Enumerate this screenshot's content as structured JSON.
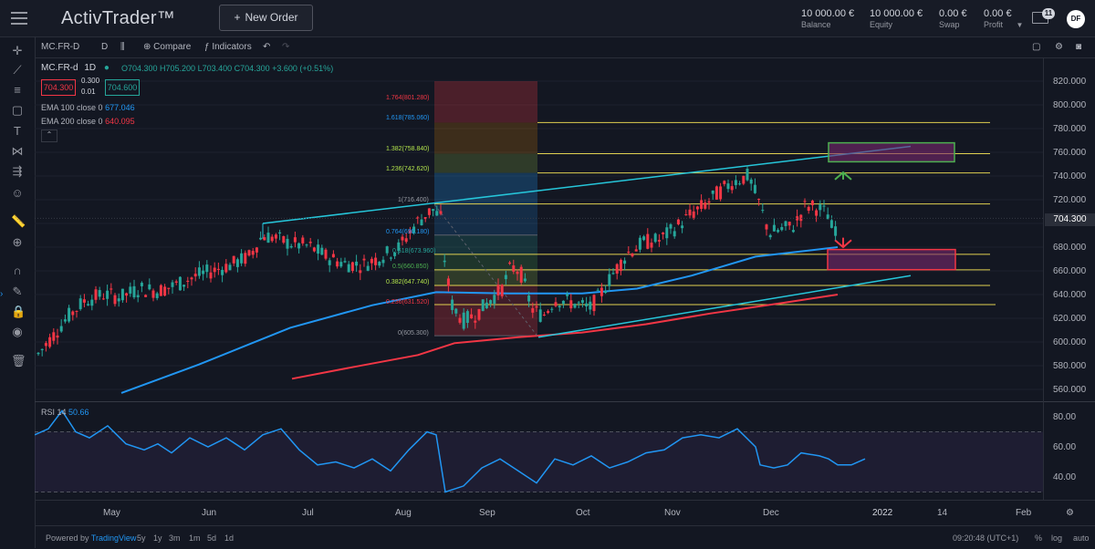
{
  "app": {
    "logo": "ActivTrader™",
    "new_order": "New Order",
    "new_order_icon": "plus-icon"
  },
  "account": [
    {
      "value": "10 000.00 €",
      "label": "Balance"
    },
    {
      "value": "10 000.00 €",
      "label": "Equity"
    },
    {
      "value": "0.00 €",
      "label": "Swap"
    },
    {
      "value": "0.00 €",
      "label": "Profit"
    }
  ],
  "notifications": "11",
  "avatar": "DF",
  "toolbar": {
    "symbol": "MC.FR-D",
    "interval": "D",
    "compare": "Compare",
    "indicators": "Indicators"
  },
  "legend": {
    "symbol": "MC.FR-d",
    "interval": "1D",
    "ohlc": "O704.300 H705.200 L703.400 C704.300 +3.600 (+0.51%)",
    "sell": "704.300",
    "spread_top": "0.300",
    "spread_bottom": "0.01",
    "buy": "704.600",
    "ema100": {
      "label": "EMA 100 close 0",
      "value": "677.046",
      "color": "#2196f3"
    },
    "ema200": {
      "label": "EMA 200 close 0",
      "value": "640.095",
      "color": "#f23645"
    }
  },
  "fib": [
    {
      "label": "1.764(801.280)",
      "color": "#f23645"
    },
    {
      "label": "1.618(785.060)",
      "color": "#2196f3"
    },
    {
      "label": "1.382(758.840)",
      "color": "#b2e34b"
    },
    {
      "label": "1.236(742.620)",
      "color": "#b2e34b"
    },
    {
      "label": "1(716.400)",
      "color": "#9598a1"
    },
    {
      "label": "0.764(690.180)",
      "color": "#2196f3"
    },
    {
      "label": "0.618(673.960)",
      "color": "#26a69a"
    },
    {
      "label": "0.5(660.850)",
      "color": "#4caf50"
    },
    {
      "label": "0.382(647.740)",
      "color": "#b2e34b"
    },
    {
      "label": "0.236(631.520)",
      "color": "#f23645"
    },
    {
      "label": "0(605.300)",
      "color": "#9598a1"
    }
  ],
  "yaxis": [
    "820.000",
    "800.000",
    "780.000",
    "760.000",
    "740.000",
    "720.000",
    "700.000",
    "680.000",
    "660.000",
    "640.000",
    "620.000",
    "600.000",
    "580.000",
    "560.000"
  ],
  "last_price": "704.300",
  "rsi": {
    "label": "RSI 14",
    "value": "50.66",
    "axis": [
      "80.00",
      "60.00",
      "40.00"
    ]
  },
  "xaxis": [
    "May",
    "Jun",
    "Jul",
    "Aug",
    "Sep",
    "Oct",
    "Nov",
    "Dec",
    "2022",
    "14",
    "Feb"
  ],
  "bottom": {
    "powered": "Powered by",
    "tv": "TradingView",
    "ranges": [
      "5y",
      "1y",
      "3m",
      "1m",
      "5d",
      "1d"
    ],
    "time": "09:20:48 (UTC+1)",
    "pct": "%",
    "log": "log",
    "auto": "auto"
  },
  "colors": {
    "up": "#26a69a",
    "down": "#f23645",
    "ema100": "#2196f3",
    "ema200": "#f23645",
    "trend": "#26c6da",
    "fibline": "#e0d050",
    "rsi": "#2196f3"
  }
}
